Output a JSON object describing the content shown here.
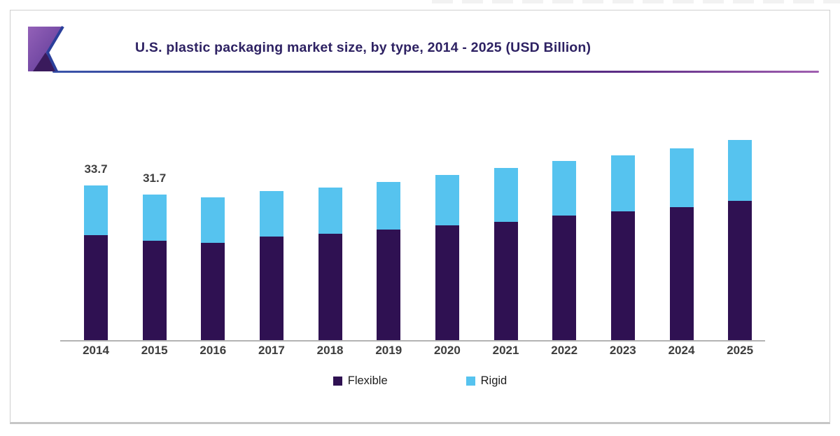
{
  "header": {
    "title": "U.S. plastic packaging market size, by type, 2014 - 2025 (USD Billion)",
    "logo_icon": "ribbon-logo-icon"
  },
  "colors": {
    "flexible": "#2f1152",
    "rigid": "#56c3ef",
    "title_text": "#2e2263",
    "axis_line": "#b3b3b3",
    "tick_text": "#3d3d3d",
    "value_label_text": "#3f3f3f",
    "rule_gradient_left": "#3a55ab",
    "rule_gradient_right": "#a05fb0"
  },
  "chart_data": {
    "type": "bar",
    "stacked": true,
    "title": "U.S. plastic packaging market size, by type, 2014 - 2025 (USD Billion)",
    "categories": [
      "2014",
      "2015",
      "2016",
      "2017",
      "2018",
      "2019",
      "2020",
      "2021",
      "2022",
      "2023",
      "2024",
      "2025"
    ],
    "series": [
      {
        "name": "Flexible",
        "color": "#2f1152",
        "values": [
          22.9,
          21.6,
          21.2,
          22.6,
          23.2,
          24.1,
          25.0,
          25.8,
          27.1,
          28.0,
          29.0,
          30.3
        ]
      },
      {
        "name": "Rigid",
        "color": "#56c3ef",
        "values": [
          10.8,
          10.1,
          9.9,
          9.9,
          10.1,
          10.4,
          11.0,
          11.7,
          11.9,
          12.2,
          12.8,
          13.3
        ]
      }
    ],
    "totals": [
      33.7,
      31.7,
      31.1,
      32.5,
      33.3,
      34.5,
      36.0,
      37.5,
      39.0,
      40.2,
      41.8,
      43.6
    ],
    "value_labels": [
      "33.7",
      "31.7",
      "",
      "",
      "",
      "",
      "",
      "",
      "",
      "",
      "",
      ""
    ],
    "xlabel": "",
    "ylabel": "",
    "ylim": [
      0,
      45
    ],
    "grid": false,
    "y_axis_shown": false,
    "legend_position": "bottom"
  },
  "legend": {
    "items": [
      {
        "label": "Flexible",
        "color": "#2f1152"
      },
      {
        "label": "Rigid",
        "color": "#56c3ef"
      }
    ]
  }
}
